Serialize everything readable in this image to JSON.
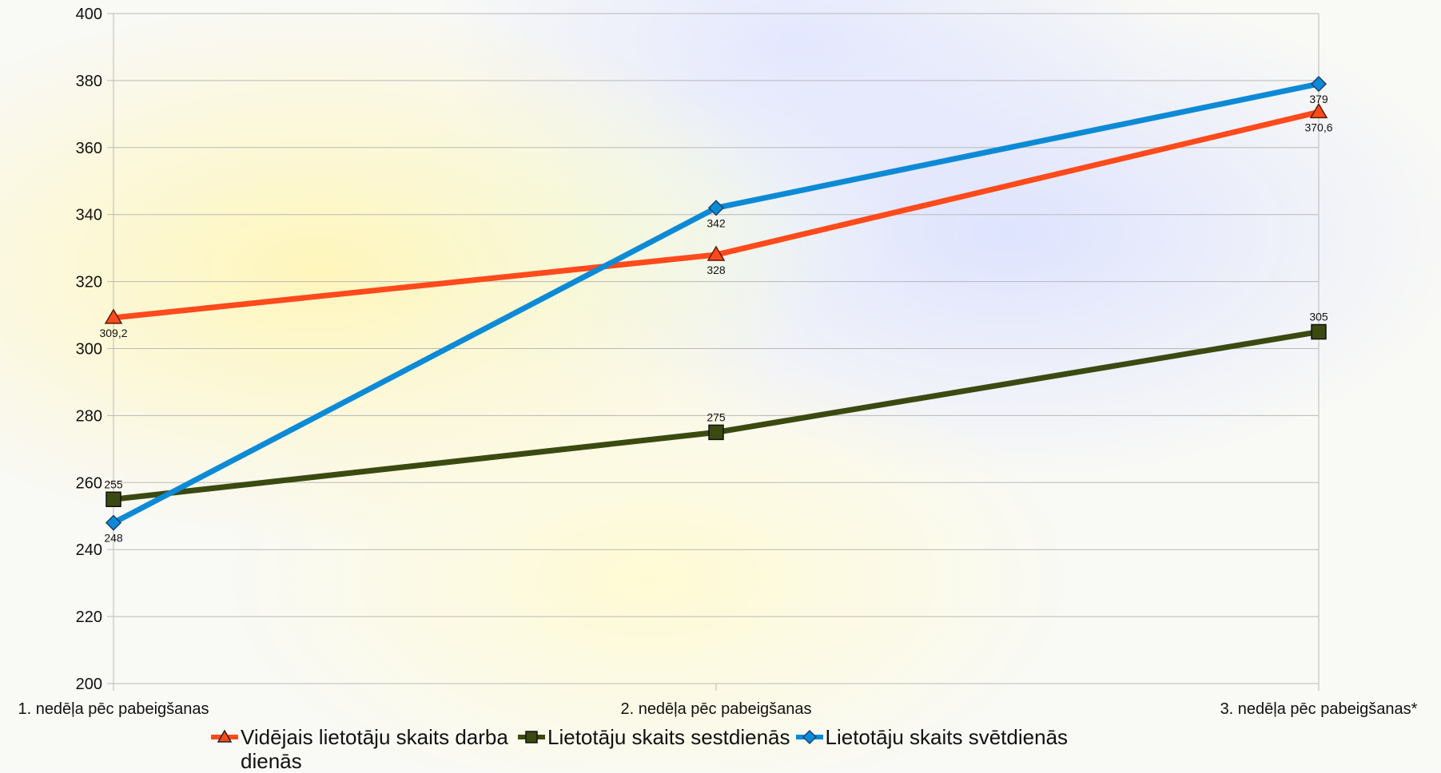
{
  "chart_data": {
    "type": "line",
    "categories": [
      "1. nedēļa pēc pabeigšanas",
      "2. nedēļa pēc pabeigšanas",
      "3. nedēļa pēc pabeigšanas*"
    ],
    "ylim": [
      200,
      400
    ],
    "yticks": [
      200,
      220,
      240,
      260,
      280,
      300,
      320,
      340,
      360,
      380,
      400
    ],
    "grid": true,
    "legend_position": "bottom",
    "series": [
      {
        "name": "Vidējais lietotāju skaits darba dienās",
        "values": [
          309.2,
          328,
          370.6
        ],
        "labels": [
          "309,2",
          "328",
          "370,6"
        ],
        "color": "#ff4a1c",
        "marker": "triangle",
        "label_position": "below"
      },
      {
        "name": "Lietotāju skaits sestdienās",
        "values": [
          255,
          275,
          305
        ],
        "labels": [
          "255",
          "275",
          "305"
        ],
        "color": "#3b4a10",
        "marker": "square",
        "label_position": "above"
      },
      {
        "name": "Lietotāju skaits svētdienās",
        "values": [
          248,
          342,
          379
        ],
        "labels": [
          "248",
          "342",
          "379"
        ],
        "color": "#0d8ad6",
        "marker": "diamond",
        "label_position": "below"
      }
    ]
  }
}
